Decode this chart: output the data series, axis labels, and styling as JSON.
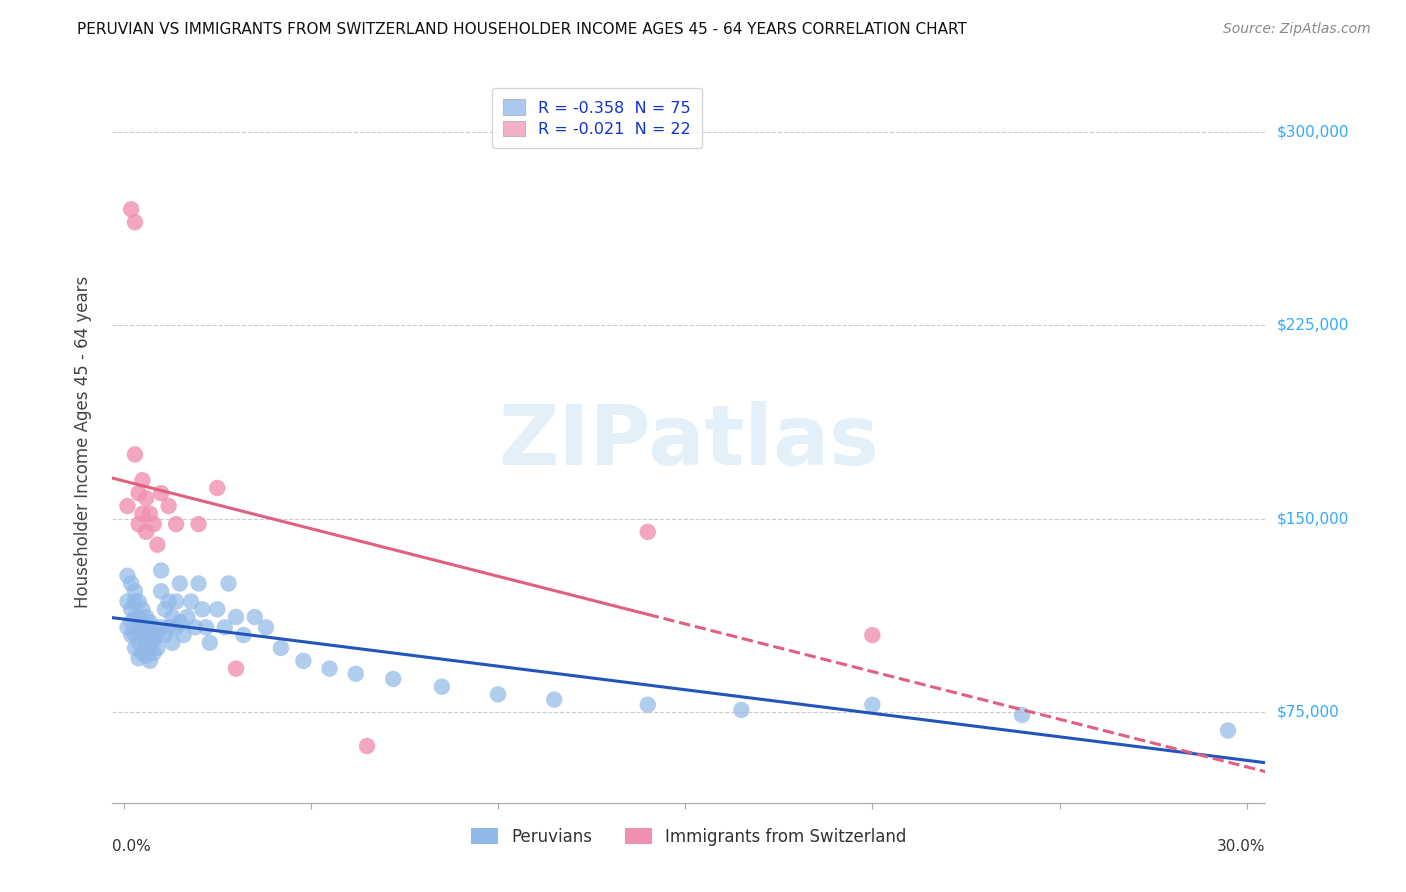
{
  "title": "PERUVIAN VS IMMIGRANTS FROM SWITZERLAND HOUSEHOLDER INCOME AGES 45 - 64 YEARS CORRELATION CHART",
  "source": "Source: ZipAtlas.com",
  "ylabel": "Householder Income Ages 45 - 64 years",
  "ytick_labels": [
    "$75,000",
    "$150,000",
    "$225,000",
    "$300,000"
  ],
  "ytick_values": [
    75000,
    150000,
    225000,
    300000
  ],
  "ylim": [
    40000,
    320000
  ],
  "xlim": [
    -0.003,
    0.305
  ],
  "legend_entries": [
    {
      "label": "R = -0.358  N = 75",
      "color": "#aac8f0"
    },
    {
      "label": "R = -0.021  N = 22",
      "color": "#f4b0c8"
    }
  ],
  "bottom_legend": [
    {
      "label": "Peruvians",
      "color": "#aac8f0"
    },
    {
      "label": "Immigrants from Switzerland",
      "color": "#f4b0c8"
    }
  ],
  "peruvian_color": "#90b8e8",
  "swiss_color": "#f090b0",
  "peruvian_line_color": "#2255bb",
  "swiss_line_color": "#e06080",
  "watermark": "ZIPatlas",
  "peruvian_x": [
    0.001,
    0.001,
    0.001,
    0.002,
    0.002,
    0.002,
    0.002,
    0.003,
    0.003,
    0.003,
    0.003,
    0.003,
    0.004,
    0.004,
    0.004,
    0.004,
    0.004,
    0.005,
    0.005,
    0.005,
    0.005,
    0.006,
    0.006,
    0.006,
    0.006,
    0.007,
    0.007,
    0.007,
    0.007,
    0.008,
    0.008,
    0.008,
    0.009,
    0.009,
    0.01,
    0.01,
    0.01,
    0.011,
    0.011,
    0.012,
    0.012,
    0.013,
    0.013,
    0.014,
    0.014,
    0.015,
    0.015,
    0.016,
    0.017,
    0.018,
    0.019,
    0.02,
    0.021,
    0.022,
    0.023,
    0.025,
    0.027,
    0.028,
    0.03,
    0.032,
    0.035,
    0.038,
    0.042,
    0.048,
    0.055,
    0.062,
    0.072,
    0.085,
    0.1,
    0.115,
    0.14,
    0.165,
    0.2,
    0.24,
    0.295
  ],
  "peruvian_y": [
    128000,
    118000,
    108000,
    125000,
    115000,
    110000,
    105000,
    122000,
    118000,
    112000,
    105000,
    100000,
    118000,
    112000,
    108000,
    102000,
    96000,
    115000,
    110000,
    105000,
    98000,
    112000,
    108000,
    102000,
    97000,
    110000,
    105000,
    100000,
    95000,
    108000,
    103000,
    98000,
    105000,
    100000,
    130000,
    122000,
    108000,
    115000,
    105000,
    118000,
    108000,
    112000,
    102000,
    118000,
    108000,
    125000,
    110000,
    105000,
    112000,
    118000,
    108000,
    125000,
    115000,
    108000,
    102000,
    115000,
    108000,
    125000,
    112000,
    105000,
    112000,
    108000,
    100000,
    95000,
    92000,
    90000,
    88000,
    85000,
    82000,
    80000,
    78000,
    76000,
    78000,
    74000,
    68000
  ],
  "swiss_x": [
    0.001,
    0.002,
    0.003,
    0.003,
    0.004,
    0.004,
    0.005,
    0.005,
    0.006,
    0.006,
    0.007,
    0.008,
    0.009,
    0.01,
    0.012,
    0.014,
    0.02,
    0.025,
    0.03,
    0.065,
    0.14,
    0.2
  ],
  "swiss_y": [
    155000,
    270000,
    265000,
    175000,
    160000,
    148000,
    165000,
    152000,
    158000,
    145000,
    152000,
    148000,
    140000,
    160000,
    155000,
    148000,
    148000,
    162000,
    92000,
    62000,
    145000,
    105000
  ]
}
